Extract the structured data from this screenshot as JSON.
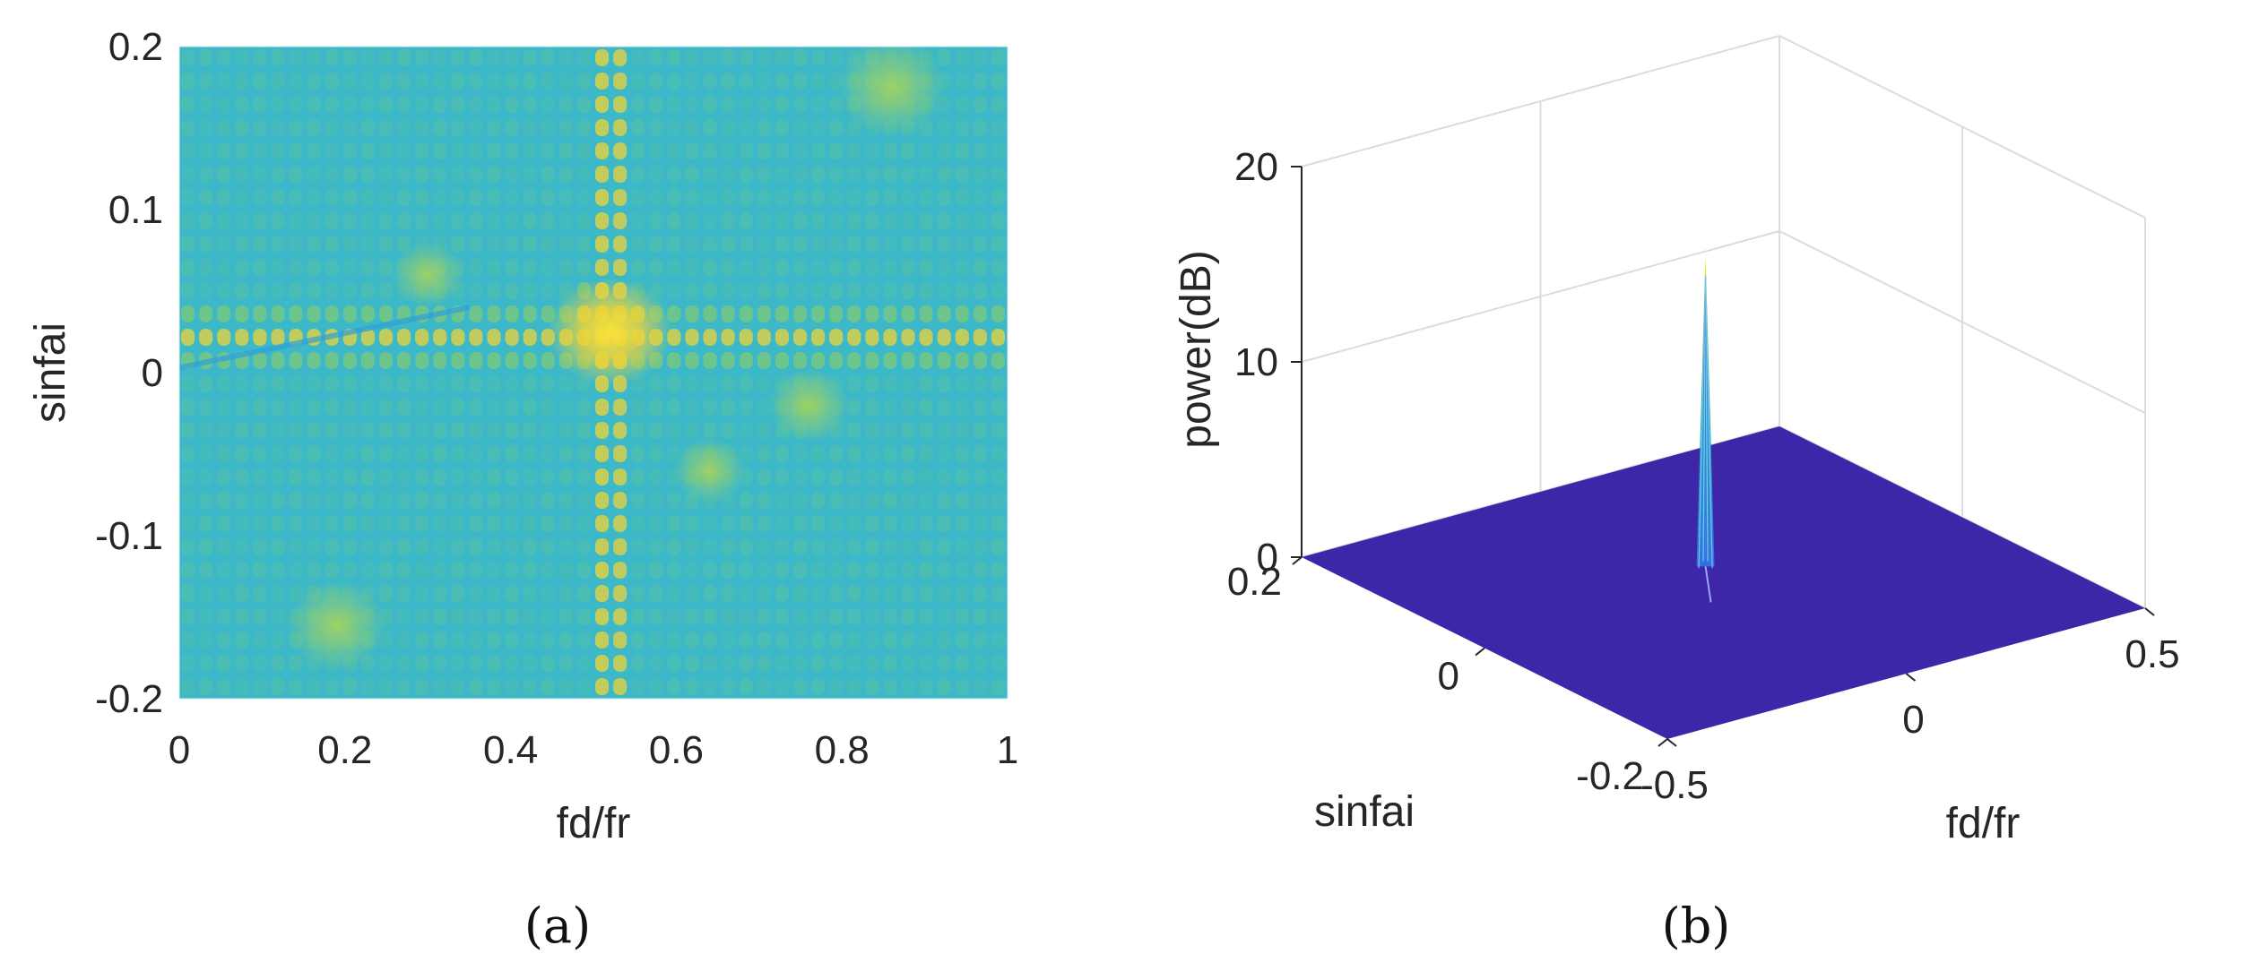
{
  "chart_data": [
    {
      "panel": "(a)",
      "type": "heatmap",
      "title": "",
      "xlabel": "fd/fr",
      "ylabel": "sinfai",
      "xlim": [
        0,
        1
      ],
      "ylim": [
        -0.2,
        0.2
      ],
      "x_ticks": [
        0,
        0.2,
        0.4,
        0.6,
        0.8,
        1
      ],
      "y_ticks": [
        -0.2,
        -0.1,
        0,
        0.1,
        0.2
      ],
      "x_tick_labels": [
        "0",
        "0.2",
        "0.4",
        "0.6",
        "0.8",
        "1"
      ],
      "y_tick_labels": [
        "-0.2",
        "-0.1",
        "0",
        "0.1",
        "0.2"
      ],
      "peak": {
        "x": 0.52,
        "y": 0.025
      },
      "colormap": "parula",
      "colors": {
        "background": "#3cb8c8",
        "mid": "#5ec49a",
        "high": "#f5dc3a",
        "low": "#2e9fd8"
      }
    },
    {
      "panel": "(b)",
      "type": "surface3d",
      "title": "",
      "xlabel": "fd/fr",
      "ylabel": "sinfai",
      "zlabel": "power(dB)",
      "xlim": [
        -0.5,
        0.5
      ],
      "ylim": [
        -0.2,
        0.2
      ],
      "zlim": [
        0,
        20
      ],
      "x_tick_labels": [
        "-0.5",
        "0",
        "0.5"
      ],
      "y_tick_labels": [
        "-0.2",
        "0",
        "0.2"
      ],
      "z_tick_labels": [
        "0",
        "10",
        "20"
      ],
      "peak": {
        "x": 0.02,
        "y": 0.03,
        "z": 16
      },
      "floor_value": 0,
      "colors": {
        "floor": "#3e26a8",
        "peak_top": "#f9fb0e",
        "peak_mid": "#35b779",
        "peak_base": "#3b8bd9"
      }
    }
  ],
  "captions": {
    "a": "(a)",
    "b": "(b)"
  }
}
